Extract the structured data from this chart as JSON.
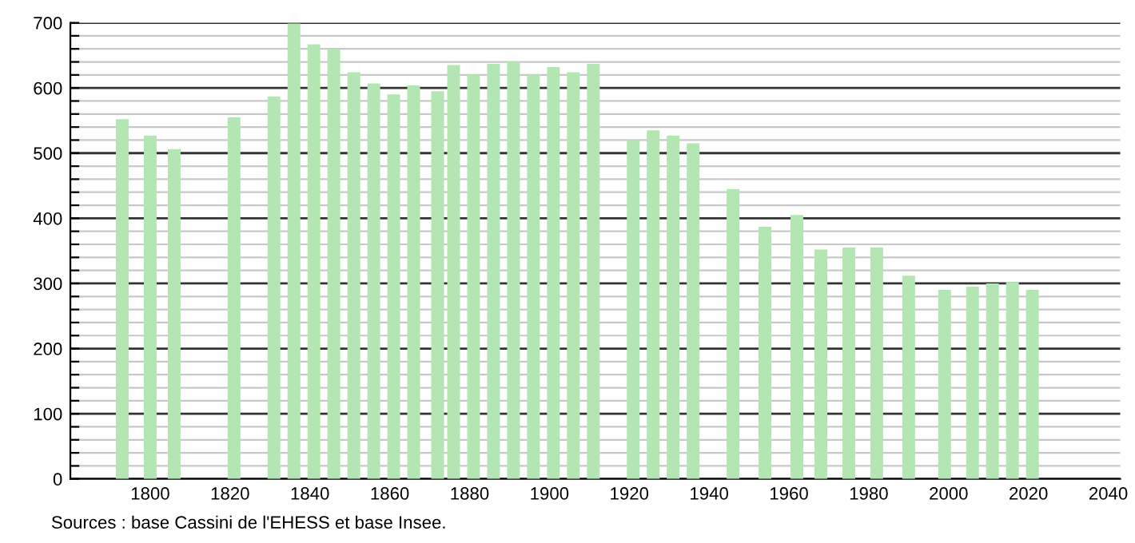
{
  "chart_data": {
    "type": "bar",
    "color": "#b4e6b4",
    "x": [
      1793,
      1800,
      1806,
      1821,
      1831,
      1836,
      1841,
      1846,
      1851,
      1856,
      1861,
      1866,
      1872,
      1876,
      1881,
      1886,
      1891,
      1896,
      1901,
      1906,
      1911,
      1921,
      1926,
      1931,
      1936,
      1946,
      1954,
      1962,
      1968,
      1975,
      1982,
      1990,
      1999,
      2006,
      2011,
      2016,
      2021
    ],
    "values": [
      552,
      527,
      506,
      555,
      587,
      699,
      667,
      660,
      624,
      607,
      590,
      604,
      595,
      635,
      620,
      637,
      640,
      620,
      632,
      624,
      637,
      520,
      535,
      527,
      515,
      445,
      387,
      405,
      352,
      355,
      355,
      312,
      290,
      295,
      300,
      302,
      290
    ],
    "xlim": [
      1780,
      2043
    ],
    "xticks": [
      1800,
      1820,
      1840,
      1860,
      1880,
      1900,
      1920,
      1940,
      1960,
      1980,
      2000,
      2020,
      2040
    ],
    "ylim": [
      0,
      700
    ],
    "yticks": [
      0,
      {
        "value": 20,
        "label": null
      },
      {
        "value": 40,
        "label": null
      },
      {
        "value": 60,
        "label": null
      },
      {
        "value": 80,
        "label": null
      },
      100,
      {
        "value": 120,
        "label": null
      },
      {
        "value": 140,
        "label": null
      },
      {
        "value": 160,
        "label": null
      },
      {
        "value": 180,
        "label": null
      },
      200,
      {
        "value": 220,
        "label": null
      },
      {
        "value": 240,
        "label": null
      },
      {
        "value": 260,
        "label": null
      },
      {
        "value": 280,
        "label": null
      },
      300,
      {
        "value": 320,
        "label": null
      },
      {
        "value": 340,
        "label": null
      },
      {
        "value": 360,
        "label": null
      },
      {
        "value": 380,
        "label": null
      },
      400,
      {
        "value": 420,
        "label": null
      },
      {
        "value": 440,
        "label": null
      },
      {
        "value": 460,
        "label": null
      },
      {
        "value": 480,
        "label": null
      },
      500,
      {
        "value": 520,
        "label": null
      },
      {
        "value": 540,
        "label": null
      },
      {
        "value": 560,
        "label": null
      },
      {
        "value": 580,
        "label": null
      },
      600,
      {
        "value": 620,
        "label": null
      },
      {
        "value": 640,
        "label": null
      },
      {
        "value": 660,
        "label": null
      },
      {
        "value": 680,
        "label": null
      },
      700
    ],
    "grid": "y",
    "annotations": [
      "Sources : base Cassini de l'EHESS et base Insee."
    ]
  }
}
